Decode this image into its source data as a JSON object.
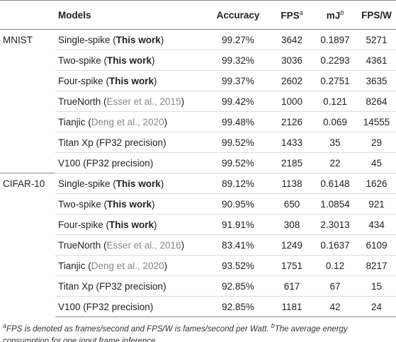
{
  "header": [
    [],
    [
      {
        "text": "Models"
      }
    ],
    [
      {
        "text": "Accuracy"
      }
    ],
    [
      {
        "text": "FPS"
      },
      {
        "text": "a",
        "sup": true
      }
    ],
    [
      {
        "text": "mJ"
      },
      {
        "text": "b",
        "sup": true
      }
    ],
    [
      {
        "text": "FPS/W"
      }
    ]
  ],
  "rows": [
    {
      "group": "MNIST",
      "model": [
        {
          "text": "Single-spike ("
        },
        {
          "text": "This work",
          "bold": true
        },
        {
          "text": ")"
        }
      ],
      "accuracy": "99.27%",
      "fps": "3642",
      "mj": "0.1897",
      "fpsw": "5271"
    },
    {
      "model": [
        {
          "text": "Two-spike ("
        },
        {
          "text": "This work",
          "bold": true
        },
        {
          "text": ")"
        }
      ],
      "accuracy": "99.32%",
      "fps": "3036",
      "mj": "0.2293",
      "fpsw": "4361"
    },
    {
      "model": [
        {
          "text": "Four-spike ("
        },
        {
          "text": "This work",
          "bold": true
        },
        {
          "text": ")"
        }
      ],
      "accuracy": "99.37%",
      "fps": "2602",
      "mj": "0.2751",
      "fpsw": "3635"
    },
    {
      "model": [
        {
          "text": "TrueNorth ("
        },
        {
          "text": "Esser et al., 2015",
          "cite": true
        },
        {
          "text": ")"
        }
      ],
      "accuracy": "99.42%",
      "fps": "1000",
      "mj": "0.121",
      "fpsw": "8264"
    },
    {
      "model": [
        {
          "text": "Tianjic ("
        },
        {
          "text": "Deng et al., 2020",
          "cite": true
        },
        {
          "text": ")"
        }
      ],
      "accuracy": "99.48%",
      "fps": "2126",
      "mj": "0.069",
      "fpsw": "14555"
    },
    {
      "model": [
        {
          "text": "Titan Xp (FP32 precision)"
        }
      ],
      "accuracy": "99.52%",
      "fps": "1433",
      "mj": "35",
      "fpsw": "29"
    },
    {
      "model": [
        {
          "text": "V100 (FP32 precision)"
        }
      ],
      "accuracy": "99.52%",
      "fps": "2185",
      "mj": "22",
      "fpsw": "45"
    },
    {
      "group": "CIFAR-10",
      "model": [
        {
          "text": "Single-spike ("
        },
        {
          "text": "This work",
          "bold": true
        },
        {
          "text": ")"
        }
      ],
      "accuracy": "89.12%",
      "fps": "1138",
      "mj": "0.6148",
      "fpsw": "1626"
    },
    {
      "model": [
        {
          "text": "Two-spike ("
        },
        {
          "text": "This work",
          "bold": true
        },
        {
          "text": ")"
        }
      ],
      "accuracy": "90.95%",
      "fps": "650",
      "mj": "1.0854",
      "fpsw": "921"
    },
    {
      "model": [
        {
          "text": "Four-spike ("
        },
        {
          "text": "This work",
          "bold": true
        },
        {
          "text": ")"
        }
      ],
      "accuracy": "91.91%",
      "fps": "308",
      "mj": "2.3013",
      "fpsw": "434"
    },
    {
      "model": [
        {
          "text": "TrueNorth ("
        },
        {
          "text": "Esser et al., 2016",
          "cite": true
        },
        {
          "text": ")"
        }
      ],
      "accuracy": "83.41%",
      "fps": "1249",
      "mj": "0.1637",
      "fpsw": "6109"
    },
    {
      "model": [
        {
          "text": "Tianjic ("
        },
        {
          "text": "Deng et al., 2020",
          "cite": true
        },
        {
          "text": ")"
        }
      ],
      "accuracy": "93.52%",
      "fps": "1751",
      "mj": "0.12",
      "fpsw": "8217"
    },
    {
      "model": [
        {
          "text": "Titan Xp (FP32 precision)"
        }
      ],
      "accuracy": "92.85%",
      "fps": "617",
      "mj": "67",
      "fpsw": "15"
    },
    {
      "model": [
        {
          "text": "V100 (FP32 precision)"
        }
      ],
      "accuracy": "92.85%",
      "fps": "1181",
      "mj": "42",
      "fpsw": "24"
    }
  ],
  "footnote": [
    {
      "text": "a",
      "sup": true
    },
    {
      "text": "FPS is denoted as frames/second and FPS/W is fames/second per Watt. "
    },
    {
      "text": "b",
      "sup": true
    },
    {
      "text": "The average energy consumption for one input frame inference."
    }
  ]
}
